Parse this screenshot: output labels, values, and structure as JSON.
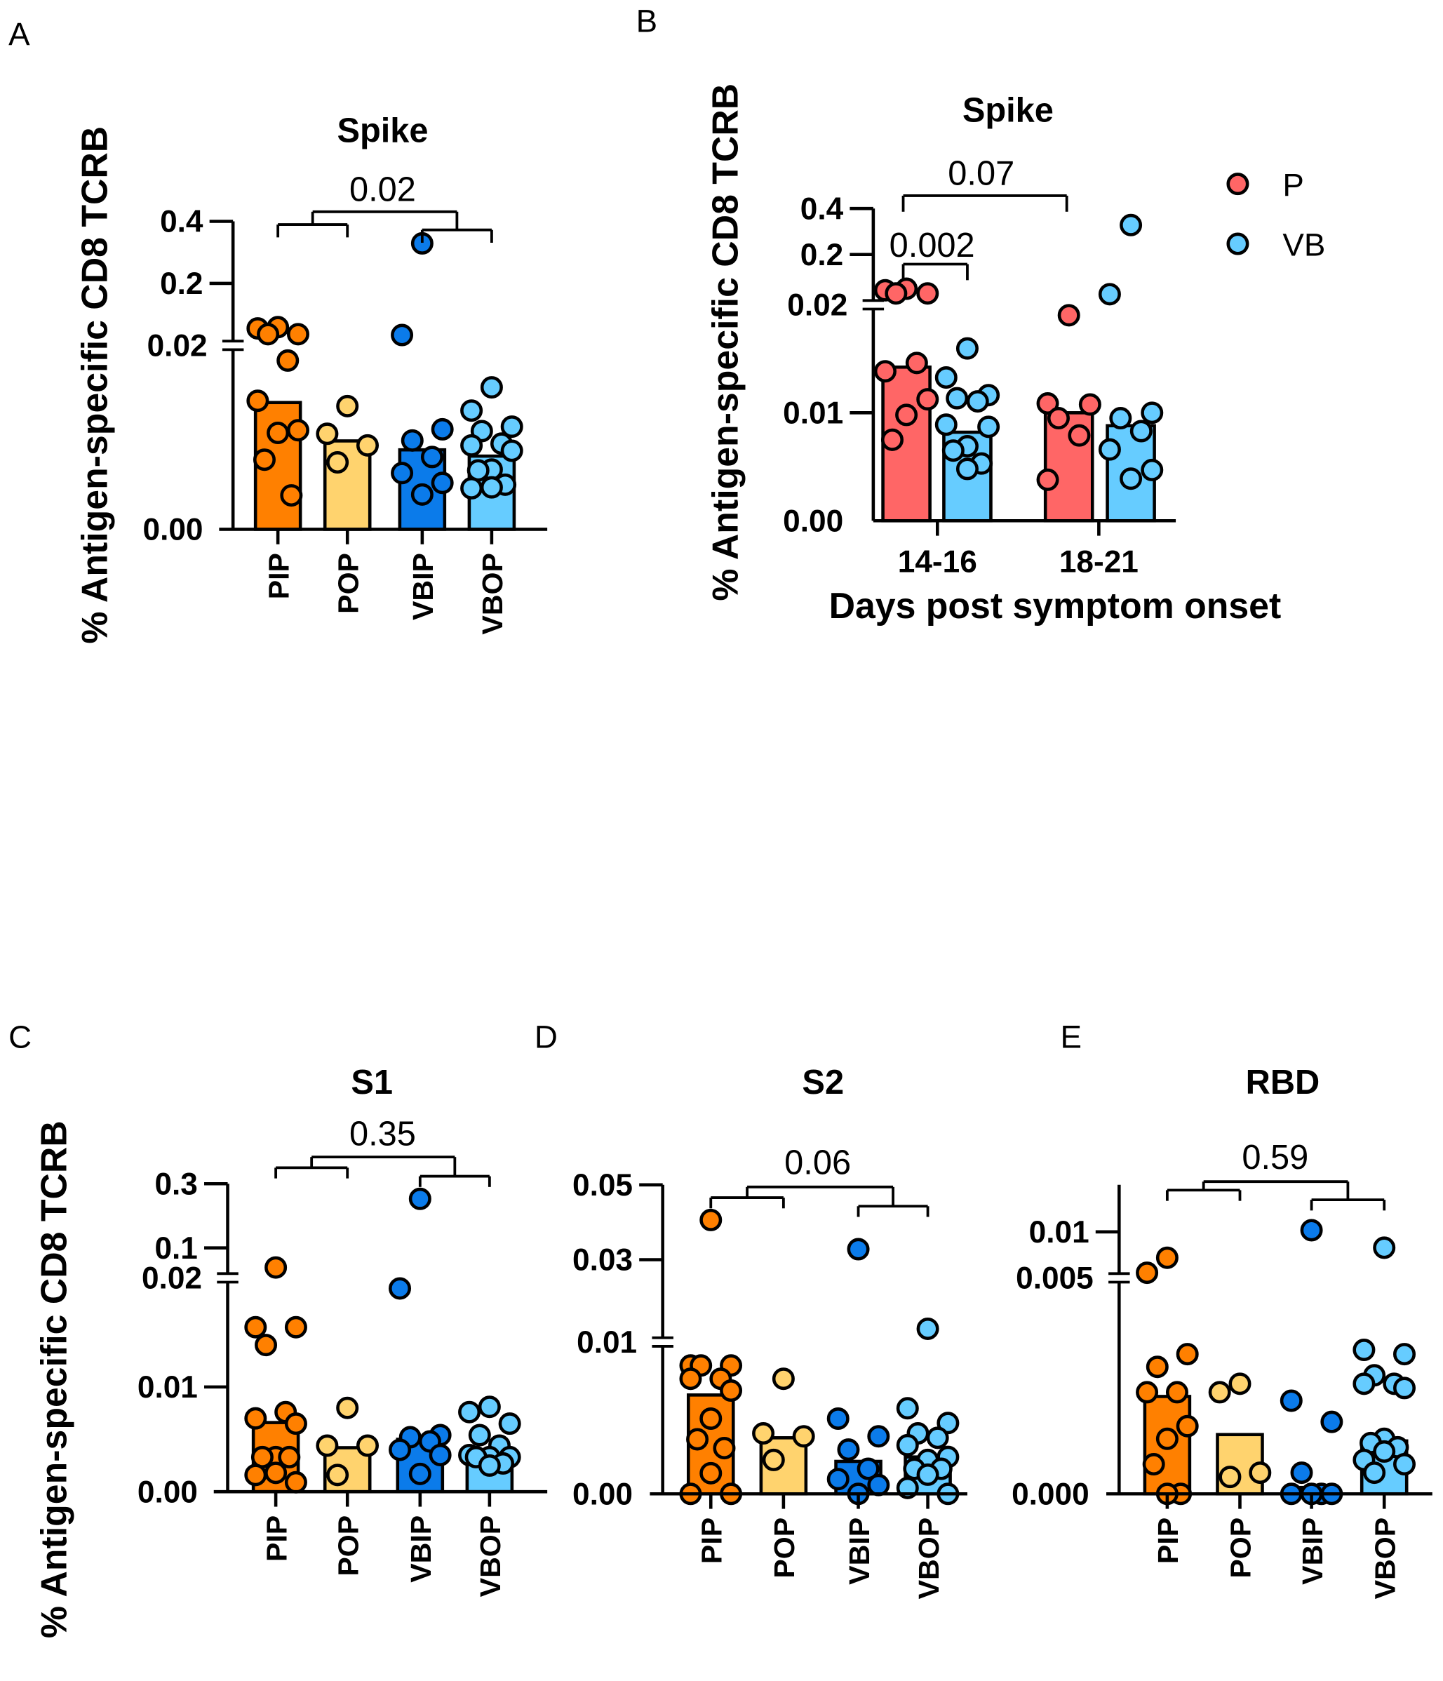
{
  "colors": {
    "PIP": "#FF8000",
    "POP": "#FFD36E",
    "VBIP": "#0B7BEA",
    "VBOP": "#66CCFF",
    "P": "#FF6666",
    "VB": "#66CCFF",
    "outline": "#000000"
  },
  "chart_data": [
    {
      "panel": "A",
      "type": "bar",
      "title": "Spike",
      "ylabel": "% Antigen-specific CD8 TCRB",
      "xlabel": "",
      "y_break": 0.02,
      "y_ticks": [
        {
          "value": 0,
          "label": "0.00"
        },
        {
          "value": 0.02,
          "label": "0.02"
        },
        {
          "value": 0.2,
          "label": "0.2"
        },
        {
          "value": 0.4,
          "label": "0.4"
        }
      ],
      "categories": [
        "PIP",
        "POP",
        "VBIP",
        "VBOP"
      ],
      "series": [
        {
          "name": "PIP",
          "mean": 0.0142,
          "points": [
            0.061,
            0.057,
            0.0386,
            0.0386,
            0.0189,
            0.0144,
            0.0111,
            0.0108,
            0.0078,
            0.0038
          ]
        },
        {
          "name": "POP",
          "mean": 0.0099,
          "points": [
            0.0138,
            0.0107,
            0.0094,
            0.0075
          ]
        },
        {
          "name": "VBIP",
          "mean": 0.0089,
          "points": [
            0.329,
            0.036,
            0.0112,
            0.00995,
            0.0081,
            0.0063,
            0.0052,
            0.0039
          ]
        },
        {
          "name": "VBOP",
          "mean": 0.0082,
          "points": [
            0.0159,
            0.0133,
            0.0115,
            0.011,
            0.0096,
            0.0094,
            0.0088,
            0.0067,
            0.0066,
            0.005,
            0.0047,
            0.0046
          ]
        }
      ],
      "comparison": {
        "p": "0.02",
        "left": [
          "PIP",
          "POP"
        ],
        "right": [
          "VBIP",
          "VBOP"
        ]
      }
    },
    {
      "panel": "B",
      "type": "bar",
      "title": "Spike",
      "ylabel": "% Antigen-specific CD8 TCRB",
      "xlabel": "Days post symptom onset",
      "y_break": 0.02,
      "y_ticks": [
        {
          "value": 0,
          "label": "0.00"
        },
        {
          "value": 0.01,
          "label": "0.01"
        },
        {
          "value": 0.02,
          "label": "0.02"
        },
        {
          "value": 0.2,
          "label": "0.2"
        },
        {
          "value": 0.4,
          "label": "0.4"
        }
      ],
      "categories": [
        "14-16",
        "18-21"
      ],
      "legend": [
        "P",
        "VB"
      ],
      "legend_position": "top-right",
      "series": [
        {
          "name": "P",
          "group": "14-16",
          "mean": 0.0144,
          "points": [
            0.066,
            0.06,
            0.0477,
            0.0477,
            0.0148,
            0.014,
            0.0113,
            0.0098,
            0.0075
          ]
        },
        {
          "name": "VB",
          "group": "14-16",
          "mean": 0.0082,
          "points": [
            0.0162,
            0.0134,
            0.0117,
            0.0114,
            0.0111,
            0.0089,
            0.0087,
            0.0069,
            0.0065,
            0.0053,
            0.0048
          ]
        },
        {
          "name": "P",
          "group": "18-21",
          "mean": 0.01,
          "points": [
            0.0194,
            0.0109,
            0.0108,
            0.0095,
            0.0079,
            0.0038
          ]
        },
        {
          "name": "VB",
          "group": "18-21",
          "mean": 0.0088,
          "points": [
            0.328,
            0.0446,
            0.01,
            0.0095,
            0.0083,
            0.0066,
            0.0047,
            0.0039
          ]
        }
      ],
      "comparisons": [
        {
          "p": "0.002",
          "between": [
            "P 14-16",
            "VB 14-16"
          ]
        },
        {
          "p": "0.07",
          "between": [
            "P 14-16",
            "P 18-21"
          ]
        }
      ]
    },
    {
      "panel": "C",
      "type": "bar",
      "title": "S1",
      "ylabel": "% Antigen-specific CD8 TCRB",
      "xlabel": "",
      "y_break": 0.02,
      "y_ticks": [
        {
          "value": 0,
          "label": "0.00"
        },
        {
          "value": 0.01,
          "label": "0.01"
        },
        {
          "value": 0.02,
          "label": "0.02"
        },
        {
          "value": 0.1,
          "label": "0.1"
        },
        {
          "value": 0.3,
          "label": "0.3"
        }
      ],
      "categories": [
        "PIP",
        "POP",
        "VBIP",
        "VBOP"
      ],
      "series": [
        {
          "name": "PIP",
          "mean": 0.0066,
          "points": [
            0.039,
            0.0157,
            0.0157,
            0.014,
            0.0076,
            0.007,
            0.0065,
            0.0033,
            0.0033,
            0.0033,
            0.0018,
            0.0016,
            0.0009
          ]
        },
        {
          "name": "POP",
          "mean": 0.0042,
          "points": [
            0.008,
            0.0044,
            0.0044,
            0.0016
          ]
        },
        {
          "name": "VBIP",
          "mean": 0.005,
          "points": [
            0.253,
            0.0194,
            0.0054,
            0.0052,
            0.0048,
            0.004,
            0.0035,
            0.0017
          ]
        },
        {
          "name": "VBOP",
          "mean": 0.0031,
          "points": [
            0.0081,
            0.0076,
            0.0065,
            0.0054,
            0.0044,
            0.0035,
            0.0033,
            0.0033,
            0.0033,
            0.0027,
            0.0025
          ]
        }
      ],
      "comparison": {
        "p": "0.35",
        "left": [
          "PIP",
          "POP"
        ],
        "right": [
          "VBIP",
          "VBOP"
        ]
      }
    },
    {
      "panel": "D",
      "type": "bar",
      "title": "S2",
      "ylabel": "",
      "xlabel": "",
      "y_break": 0.01,
      "y_ticks": [
        {
          "value": 0,
          "label": "0.00"
        },
        {
          "value": 0.01,
          "label": "0.01"
        },
        {
          "value": 0.03,
          "label": "0.03"
        },
        {
          "value": 0.05,
          "label": "0.05"
        }
      ],
      "categories": [
        "PIP",
        "POP",
        "VBIP",
        "VBOP"
      ],
      "series": [
        {
          "name": "PIP",
          "mean": 0.0067,
          "points": [
            0.0406,
            0.0087,
            0.0087,
            0.0087,
            0.0078,
            0.0078,
            0.007,
            0.0051,
            0.0037,
            0.0031,
            0.0014,
            0,
            0
          ]
        },
        {
          "name": "POP",
          "mean": 0.0038,
          "points": [
            0.0078,
            0.0041,
            0.0039,
            0.0023
          ]
        },
        {
          "name": "VBIP",
          "mean": 0.0022,
          "points": [
            0.0328,
            0.0051,
            0.0039,
            0.003,
            0.0017,
            0.001,
            0.0006,
            0
          ]
        },
        {
          "name": "VBOP",
          "mean": 0.0025,
          "points": [
            0.0123,
            0.0058,
            0.0048,
            0.0041,
            0.0038,
            0.0033,
            0.0025,
            0.0023,
            0.0017,
            0.0017,
            0.0013,
            0.0004,
            0
          ]
        }
      ],
      "comparison": {
        "p": "0.06",
        "left": [
          "PIP",
          "POP"
        ],
        "right": [
          "VBIP",
          "VBOP"
        ]
      }
    },
    {
      "panel": "E",
      "type": "bar",
      "title": "RBD",
      "ylabel": "",
      "xlabel": "",
      "y_break": 0.005,
      "y_ticks": [
        {
          "value": 0,
          "label": "0.000"
        },
        {
          "value": 0.005,
          "label": "0.005"
        },
        {
          "value": 0.01,
          "label": "0.01"
        }
      ],
      "categories": [
        "PIP",
        "POP",
        "VBIP",
        "VBOP"
      ],
      "series": [
        {
          "name": "PIP",
          "mean": 0.0023,
          "points": [
            0.0069,
            0.0051,
            0.0033,
            0.003,
            0.0024,
            0.0024,
            0.0016,
            0.0013,
            0.0007,
            0,
            0
          ]
        },
        {
          "name": "POP",
          "mean": 0.0014,
          "points": [
            0.0026,
            0.0024,
            0.0005,
            0.0004
          ]
        },
        {
          "name": "VBIP",
          "mean": 0.00015,
          "points": [
            0.0102,
            0.0022,
            0.0017,
            0.0005,
            0,
            0,
            0,
            0
          ]
        },
        {
          "name": "VBOP",
          "mean": 0.00125,
          "points": [
            0.0081,
            0.0034,
            0.0033,
            0.0028,
            0.0026,
            0.0026,
            0.0025,
            0.0013,
            0.0012,
            0.0011,
            0.001,
            0.0008,
            0.0007,
            0.0005
          ]
        }
      ],
      "comparison": {
        "p": "0.59",
        "left": [
          "PIP",
          "POP"
        ],
        "right": [
          "VBIP",
          "VBOP"
        ]
      }
    }
  ]
}
